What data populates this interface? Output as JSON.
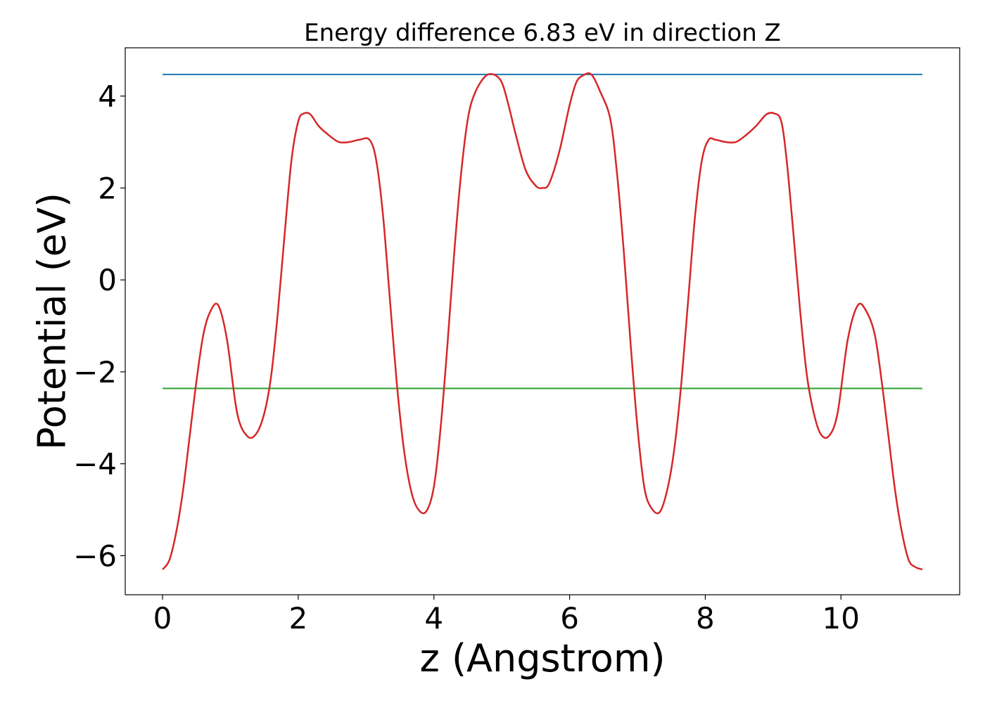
{
  "chart_data": {
    "type": "line",
    "title": "Energy difference 6.83 eV in direction Z",
    "xlabel": "z (Angstrom)",
    "ylabel": "Potential (eV)",
    "xlim": [
      -0.55,
      11.75
    ],
    "ylim": [
      -6.85,
      5.05
    ],
    "xticks": [
      0,
      2,
      4,
      6,
      8,
      10
    ],
    "yticks": [
      -6,
      -4,
      -2,
      0,
      2,
      4
    ],
    "grid": false,
    "legend": "none",
    "colors": {
      "potential": "#d62728",
      "upper_level": "#1f77b4",
      "lower_level": "#2ca02c"
    },
    "hlines": [
      {
        "key": "upper_level",
        "y": 4.47,
        "x": [
          0,
          11.2
        ]
      },
      {
        "key": "lower_level",
        "y": -2.36,
        "x": [
          0,
          11.2
        ]
      }
    ],
    "series": [
      {
        "key": "potential",
        "x": [
          0.0,
          0.1,
          0.2,
          0.3,
          0.4,
          0.5,
          0.6,
          0.7,
          0.82,
          0.95,
          1.1,
          1.25,
          1.38,
          1.5,
          1.6,
          1.7,
          1.8,
          1.9,
          2.0,
          2.08,
          2.18,
          2.3,
          2.45,
          2.6,
          2.75,
          2.9,
          3.05,
          3.15,
          3.25,
          3.35,
          3.45,
          3.55,
          3.65,
          3.75,
          3.88,
          4.0,
          4.1,
          4.2,
          4.3,
          4.4,
          4.5,
          4.6,
          4.75,
          4.88,
          5.0,
          5.1,
          5.2,
          5.35,
          5.5,
          5.6,
          5.7,
          5.85,
          6.0,
          6.1,
          6.2,
          6.32,
          6.45,
          6.6,
          6.7,
          6.8,
          6.9,
          7.0,
          7.1,
          7.2,
          7.33,
          7.45,
          7.55,
          7.65,
          7.75,
          7.85,
          7.95,
          8.05,
          8.15,
          8.3,
          8.45,
          8.6,
          8.75,
          8.9,
          9.02,
          9.12,
          9.2,
          9.3,
          9.4,
          9.5,
          9.6,
          9.7,
          9.82,
          9.95,
          10.1,
          10.25,
          10.38,
          10.5,
          10.6,
          10.7,
          10.8,
          10.9,
          11.0,
          11.1,
          11.2
        ],
        "values": [
          -6.3,
          -6.1,
          -5.5,
          -4.6,
          -3.4,
          -2.2,
          -1.2,
          -0.7,
          -0.55,
          -1.3,
          -2.9,
          -3.4,
          -3.35,
          -2.9,
          -2.1,
          -0.7,
          1.0,
          2.6,
          3.45,
          3.62,
          3.6,
          3.35,
          3.15,
          3.0,
          3.0,
          3.05,
          3.05,
          2.6,
          1.4,
          -0.4,
          -2.2,
          -3.6,
          -4.5,
          -4.95,
          -5.05,
          -4.5,
          -3.2,
          -1.4,
          0.6,
          2.3,
          3.5,
          4.05,
          4.42,
          4.47,
          4.3,
          3.8,
          3.2,
          2.4,
          2.05,
          2.0,
          2.1,
          2.8,
          3.8,
          4.3,
          4.45,
          4.47,
          4.1,
          3.5,
          2.3,
          0.6,
          -1.4,
          -3.2,
          -4.5,
          -4.95,
          -5.05,
          -4.5,
          -3.6,
          -2.2,
          -0.4,
          1.4,
          2.6,
          3.05,
          3.05,
          3.0,
          3.0,
          3.15,
          3.35,
          3.6,
          3.62,
          3.45,
          2.6,
          1.0,
          -0.7,
          -2.1,
          -2.9,
          -3.35,
          -3.4,
          -2.9,
          -1.3,
          -0.55,
          -0.7,
          -1.2,
          -2.2,
          -3.4,
          -4.6,
          -5.5,
          -6.1,
          -6.25,
          -6.3
        ]
      }
    ]
  }
}
